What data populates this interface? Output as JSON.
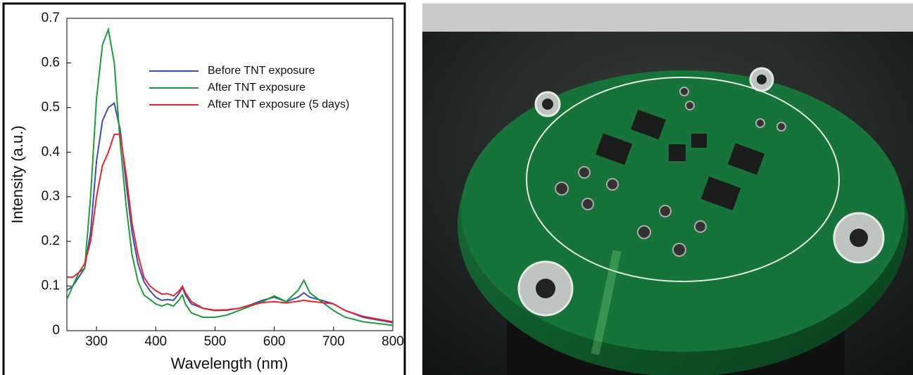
{
  "chart_data": {
    "type": "line",
    "xlabel": "Wavelength (nm)",
    "ylabel": "Intensity (a.u.)",
    "xlim": [
      250,
      800
    ],
    "ylim": [
      0,
      0.7
    ],
    "xticks": [
      300,
      400,
      500,
      600,
      700,
      800
    ],
    "yticks": [
      0,
      0.1,
      0.2,
      0.3,
      0.4,
      0.5,
      0.6,
      0.7
    ],
    "legend": "upper right",
    "x": [
      250,
      260,
      270,
      280,
      290,
      300,
      310,
      320,
      330,
      340,
      350,
      360,
      370,
      380,
      390,
      400,
      410,
      420,
      430,
      440,
      445,
      450,
      460,
      480,
      500,
      520,
      540,
      560,
      580,
      600,
      620,
      640,
      650,
      660,
      680,
      700,
      720,
      750,
      800
    ],
    "series": [
      {
        "name": "Before TNT exposure",
        "color": "#3a4fb0",
        "values": [
          0.09,
          0.1,
          0.12,
          0.14,
          0.22,
          0.38,
          0.47,
          0.5,
          0.51,
          0.45,
          0.33,
          0.22,
          0.15,
          0.11,
          0.09,
          0.075,
          0.068,
          0.07,
          0.068,
          0.085,
          0.097,
          0.08,
          0.06,
          0.05,
          0.045,
          0.046,
          0.05,
          0.058,
          0.068,
          0.075,
          0.065,
          0.075,
          0.085,
          0.075,
          0.068,
          0.06,
          0.045,
          0.03,
          0.018
        ]
      },
      {
        "name": "After TNT exposure",
        "color": "#1f9a3a",
        "values": [
          0.07,
          0.1,
          0.13,
          0.14,
          0.3,
          0.52,
          0.64,
          0.675,
          0.6,
          0.42,
          0.28,
          0.17,
          0.11,
          0.08,
          0.07,
          0.06,
          0.055,
          0.06,
          0.055,
          0.07,
          0.08,
          0.06,
          0.04,
          0.03,
          0.03,
          0.035,
          0.045,
          0.055,
          0.065,
          0.078,
          0.065,
          0.09,
          0.113,
          0.085,
          0.065,
          0.045,
          0.03,
          0.02,
          0.012
        ]
      },
      {
        "name": "After TNT exposure (5 days)",
        "color": "#e8262a",
        "values": [
          0.12,
          0.12,
          0.13,
          0.15,
          0.2,
          0.3,
          0.37,
          0.4,
          0.44,
          0.44,
          0.35,
          0.24,
          0.17,
          0.12,
          0.1,
          0.09,
          0.082,
          0.083,
          0.078,
          0.09,
          0.1,
          0.085,
          0.065,
          0.05,
          0.046,
          0.047,
          0.05,
          0.057,
          0.063,
          0.065,
          0.062,
          0.066,
          0.068,
          0.066,
          0.063,
          0.06,
          0.045,
          0.032,
          0.02
        ]
      }
    ]
  }
}
